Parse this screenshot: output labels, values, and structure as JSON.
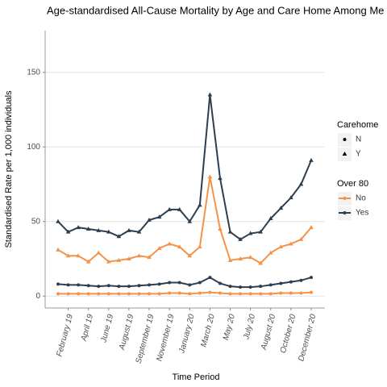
{
  "chart_data": {
    "type": "line",
    "title": "Age-standardised All-Cause Mortality by Age and Care Home Among Me",
    "x_label": "Time Period",
    "y_label": "Standardised Rate per 1,000 individuals",
    "categories": [
      null,
      "February 19",
      null,
      "April 19",
      null,
      "June 19",
      null,
      "August 19",
      null,
      "September 19",
      null,
      "November 19",
      null,
      "January 20",
      null,
      "March 20",
      null,
      "May 20",
      null,
      "July 20",
      null,
      "August 20",
      null,
      "October 20",
      null,
      "December 20"
    ],
    "ylim": [
      -8,
      178
    ],
    "yticks": [
      0,
      50,
      100,
      150
    ],
    "grid": true,
    "legends": [
      {
        "title": "Carehome",
        "items": [
          {
            "label": "N",
            "shape": "circle"
          },
          {
            "label": "Y",
            "shape": "triangle"
          }
        ]
      },
      {
        "title": "Over 80",
        "items": [
          {
            "label": "No",
            "color": "#f5924a"
          },
          {
            "label": "Yes",
            "color": "#2c3e50"
          }
        ]
      }
    ],
    "series": [
      {
        "color": "#2c3e50",
        "shape": "triangle",
        "values": [
          50,
          43,
          46,
          45,
          44,
          43,
          40,
          44,
          43,
          51,
          53,
          58,
          58,
          50,
          61,
          135,
          79,
          43,
          38,
          42,
          43,
          52,
          59,
          66,
          75,
          91
        ]
      },
      {
        "color": "#f5924a",
        "shape": "triangle",
        "values": [
          31,
          27,
          27,
          23,
          29,
          23,
          24,
          25,
          27,
          26,
          32,
          35,
          33,
          27,
          33,
          80,
          45,
          24,
          25,
          26,
          22,
          29,
          33,
          35,
          38,
          46
        ]
      },
      {
        "color": "#2c3e50",
        "shape": "circle",
        "values": [
          8,
          7.5,
          7.5,
          7,
          6.5,
          7,
          6.5,
          6.5,
          7,
          7.5,
          8,
          9,
          9,
          7.5,
          9,
          12.5,
          8.5,
          6.5,
          6,
          6,
          6.5,
          7.5,
          8.5,
          9.5,
          10.5,
          12.5
        ]
      },
      {
        "color": "#f5924a",
        "shape": "circle",
        "values": [
          1.5,
          1.5,
          1.5,
          1.5,
          1.5,
          1.5,
          1.5,
          1.5,
          1.5,
          1.5,
          1.5,
          2,
          2,
          1.5,
          2,
          2.5,
          2,
          1.5,
          1.5,
          1.5,
          1.5,
          1.5,
          2,
          2,
          2,
          2.5
        ]
      }
    ]
  }
}
